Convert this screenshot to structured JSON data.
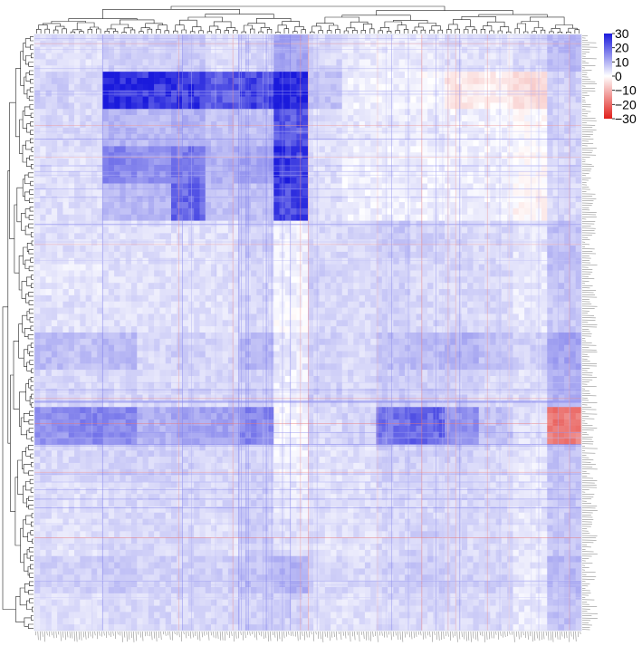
{
  "chart_data": {
    "type": "heatmap",
    "title": "",
    "xlabel": "",
    "ylabel": "",
    "clustered": true,
    "dendrograms": [
      "top",
      "left"
    ],
    "row_labels_visible": false,
    "column_labels_visible": false,
    "colorbar": {
      "position": "top-right",
      "range": [
        -30,
        30
      ],
      "ticks": [
        30,
        20,
        10,
        0,
        -10,
        -20,
        -30
      ],
      "tick_labels": [
        "30",
        "20",
        "10",
        "0",
        "−10",
        "−20",
        "−30"
      ],
      "color_low": "#e0201b",
      "color_mid": "#ffffff",
      "color_high": "#1a1adc"
    },
    "approximate_block_pattern": {
      "note_grid": "values on a 16 x 16 block grid approximating the clustered matrix (rows top->bottom, cols left->right)",
      "grid_size": [
        16,
        16
      ],
      "values": [
        [
          4,
          4,
          6,
          6,
          7,
          4,
          5,
          12,
          5,
          3,
          3,
          3,
          4,
          4,
          5,
          9
        ],
        [
          6,
          5,
          28,
          27,
          26,
          22,
          24,
          30,
          8,
          2,
          2,
          1,
          -3,
          -2,
          -5,
          6
        ],
        [
          5,
          5,
          10,
          9,
          10,
          8,
          8,
          22,
          4,
          3,
          3,
          3,
          2,
          2,
          0,
          6
        ],
        [
          4,
          4,
          16,
          14,
          18,
          10,
          12,
          27,
          4,
          2,
          2,
          2,
          2,
          2,
          0,
          5
        ],
        [
          4,
          4,
          9,
          9,
          20,
          8,
          8,
          24,
          4,
          2,
          2,
          2,
          2,
          2,
          -1,
          5
        ],
        [
          4,
          4,
          4,
          4,
          4,
          4,
          6,
          2,
          5,
          5,
          7,
          6,
          5,
          5,
          3,
          8
        ],
        [
          3,
          3,
          4,
          4,
          4,
          4,
          5,
          2,
          6,
          5,
          6,
          5,
          5,
          5,
          3,
          8
        ],
        [
          4,
          4,
          4,
          4,
          4,
          4,
          5,
          1,
          5,
          5,
          6,
          5,
          5,
          5,
          3,
          7
        ],
        [
          9,
          8,
          9,
          5,
          6,
          5,
          9,
          3,
          6,
          5,
          8,
          9,
          10,
          8,
          6,
          12
        ],
        [
          5,
          5,
          5,
          5,
          5,
          5,
          6,
          2,
          6,
          5,
          7,
          6,
          6,
          5,
          4,
          10
        ],
        [
          14,
          16,
          15,
          10,
          12,
          12,
          16,
          1,
          5,
          6,
          18,
          20,
          14,
          8,
          4,
          -18
        ],
        [
          5,
          5,
          6,
          6,
          6,
          5,
          6,
          2,
          4,
          4,
          6,
          6,
          6,
          5,
          3,
          8
        ],
        [
          4,
          4,
          5,
          5,
          5,
          5,
          6,
          3,
          4,
          4,
          5,
          5,
          5,
          5,
          3,
          7
        ],
        [
          4,
          4,
          5,
          5,
          5,
          4,
          6,
          4,
          4,
          4,
          5,
          6,
          5,
          5,
          3,
          7
        ],
        [
          6,
          6,
          7,
          6,
          6,
          6,
          8,
          10,
          5,
          5,
          6,
          7,
          6,
          6,
          3,
          9
        ],
        [
          4,
          4,
          5,
          5,
          5,
          5,
          6,
          6,
          4,
          4,
          5,
          5,
          5,
          5,
          3,
          8
        ]
      ]
    }
  }
}
